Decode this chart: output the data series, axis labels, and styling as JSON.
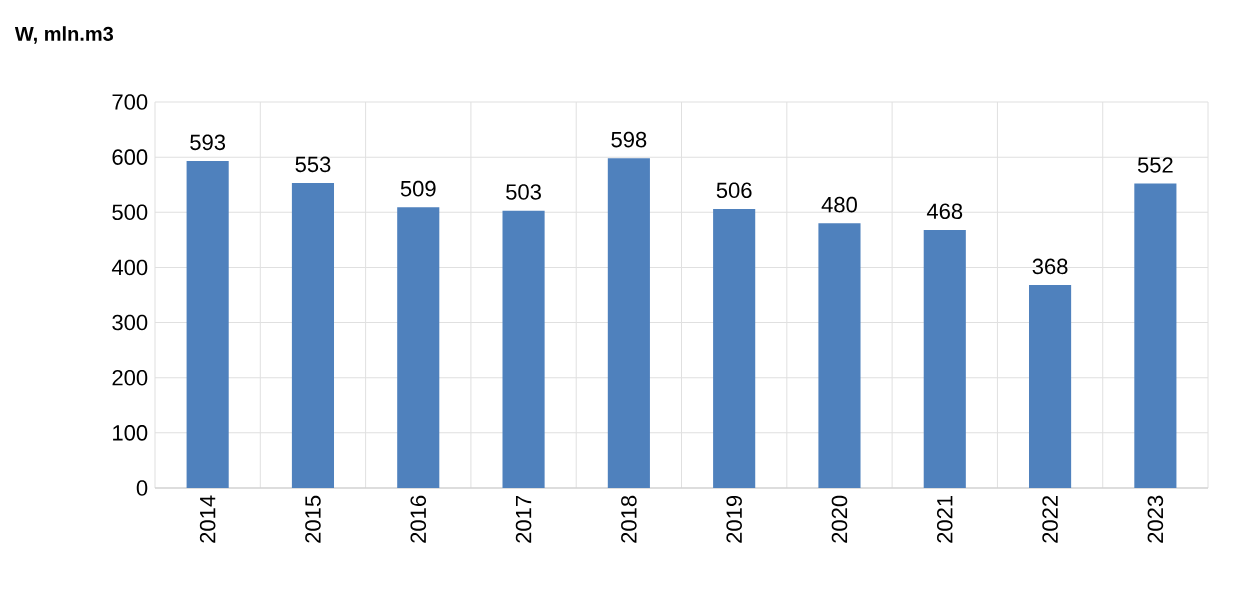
{
  "chart_data": {
    "type": "bar",
    "ylabel": "W, mln.m3",
    "categories": [
      "2014",
      "2015",
      "2016",
      "2017",
      "2018",
      "2019",
      "2020",
      "2021",
      "2022",
      "2023"
    ],
    "values": [
      593,
      553,
      509,
      503,
      598,
      506,
      480,
      468,
      368,
      552
    ],
    "color": "#4f81bd",
    "ylim": [
      0,
      700
    ],
    "yticks": [
      0,
      100,
      200,
      300,
      400,
      500,
      600,
      700
    ],
    "grid": true,
    "data_labels": true
  }
}
